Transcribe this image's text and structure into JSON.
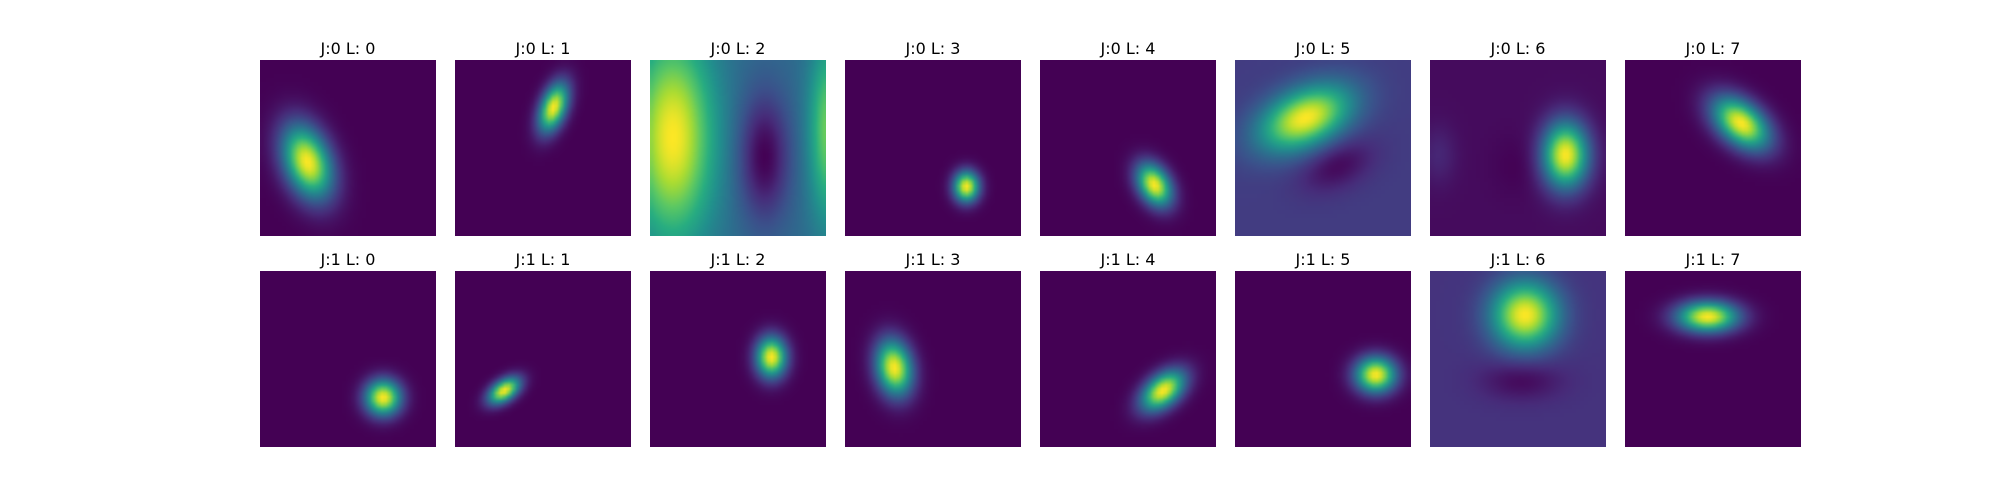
{
  "chart_data": {
    "type": "heatmap",
    "colormap": "viridis",
    "grid": false,
    "axes_visible": false,
    "rows": 2,
    "cols": 8,
    "panels": [
      [
        {
          "title": "J:0 L: 0",
          "blobs": [
            {
              "cx": 0.27,
              "cy": 0.58,
              "sx": 0.09,
              "sy": 0.15,
              "angle": -20,
              "amp": 1.0
            }
          ]
        },
        {
          "title": "J:0 L: 1",
          "blobs": [
            {
              "cx": 0.56,
              "cy": 0.27,
              "sx": 0.05,
              "sy": 0.1,
              "angle": 20,
              "amp": 1.0
            }
          ]
        },
        {
          "title": "J:0 L: 2",
          "background": 0.35,
          "blobs": [
            {
              "cx": 0.13,
              "cy": 0.44,
              "sx": 0.16,
              "sy": 0.4,
              "angle": 0,
              "amp": 0.65
            },
            {
              "cx": 0.65,
              "cy": 0.55,
              "sx": 0.1,
              "sy": 0.25,
              "angle": 0,
              "amp": -0.35
            },
            {
              "cx": 1.02,
              "cy": 0.4,
              "sx": 0.08,
              "sy": 0.35,
              "angle": 0,
              "amp": 0.45
            }
          ]
        },
        {
          "title": "J:0 L: 3",
          "blobs": [
            {
              "cx": 0.69,
              "cy": 0.72,
              "sx": 0.05,
              "sy": 0.06,
              "angle": 0,
              "amp": 1.0
            }
          ]
        },
        {
          "title": "J:0 L: 4",
          "blobs": [
            {
              "cx": 0.65,
              "cy": 0.71,
              "sx": 0.06,
              "sy": 0.09,
              "angle": -30,
              "amp": 1.0
            }
          ]
        },
        {
          "title": "J:0 L: 5",
          "background": 0.18,
          "blobs": [
            {
              "cx": 0.4,
              "cy": 0.33,
              "sx": 0.19,
              "sy": 0.11,
              "angle": -25,
              "amp": 0.82
            },
            {
              "cx": 0.58,
              "cy": 0.6,
              "sx": 0.15,
              "sy": 0.09,
              "angle": -25,
              "amp": -0.16
            }
          ]
        },
        {
          "title": "J:0 L: 6",
          "background": 0.03,
          "blobs": [
            {
              "cx": 0.77,
              "cy": 0.54,
              "sx": 0.09,
              "sy": 0.13,
              "angle": 0,
              "amp": 0.97
            },
            {
              "cx": 0.05,
              "cy": 0.54,
              "sx": 0.07,
              "sy": 0.12,
              "angle": 0,
              "amp": 0.08
            },
            {
              "cx": 0.5,
              "cy": 0.6,
              "sx": 0.1,
              "sy": 0.12,
              "angle": 0,
              "amp": -0.03
            }
          ]
        },
        {
          "title": "J:0 L: 7",
          "blobs": [
            {
              "cx": 0.66,
              "cy": 0.36,
              "sx": 0.13,
              "sy": 0.08,
              "angle": 40,
              "amp": 1.0
            }
          ]
        }
      ],
      [
        {
          "title": "J:1 L: 0",
          "blobs": [
            {
              "cx": 0.7,
              "cy": 0.72,
              "sx": 0.07,
              "sy": 0.07,
              "angle": 0,
              "amp": 1.0
            }
          ]
        },
        {
          "title": "J:1 L: 1",
          "blobs": [
            {
              "cx": 0.28,
              "cy": 0.68,
              "sx": 0.07,
              "sy": 0.04,
              "angle": -35,
              "amp": 1.0
            }
          ]
        },
        {
          "title": "J:1 L: 2",
          "blobs": [
            {
              "cx": 0.69,
              "cy": 0.49,
              "sx": 0.06,
              "sy": 0.08,
              "angle": 0,
              "amp": 1.0
            }
          ]
        },
        {
          "title": "J:1 L: 3",
          "blobs": [
            {
              "cx": 0.28,
              "cy": 0.55,
              "sx": 0.07,
              "sy": 0.11,
              "angle": -10,
              "amp": 1.0
            }
          ]
        },
        {
          "title": "J:1 L: 4",
          "blobs": [
            {
              "cx": 0.7,
              "cy": 0.68,
              "sx": 0.1,
              "sy": 0.06,
              "angle": -40,
              "amp": 1.0
            }
          ]
        },
        {
          "title": "J:1 L: 5",
          "blobs": [
            {
              "cx": 0.8,
              "cy": 0.59,
              "sx": 0.08,
              "sy": 0.07,
              "angle": 0,
              "amp": 1.0
            }
          ]
        },
        {
          "title": "J:1 L: 6",
          "background": 0.15,
          "blobs": [
            {
              "cx": 0.54,
              "cy": 0.25,
              "sx": 0.13,
              "sy": 0.13,
              "angle": 0,
              "amp": 0.85
            },
            {
              "cx": 0.52,
              "cy": 0.62,
              "sx": 0.16,
              "sy": 0.08,
              "angle": 0,
              "amp": -0.13
            }
          ]
        },
        {
          "title": "J:1 L: 7",
          "blobs": [
            {
              "cx": 0.47,
              "cy": 0.26,
              "sx": 0.12,
              "sy": 0.06,
              "angle": 0,
              "amp": 1.0
            }
          ]
        }
      ]
    ]
  }
}
